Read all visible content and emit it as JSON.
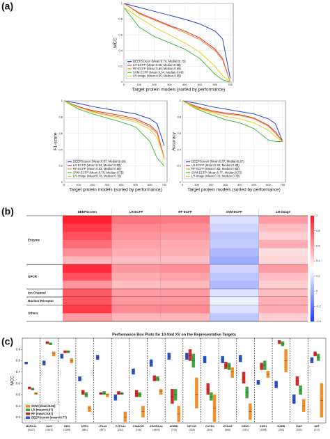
{
  "panel_labels": [
    "(a)",
    "(b)",
    "(c)"
  ],
  "chart_data": [
    {
      "type": "line",
      "xlabel": "Target protein models (sorted by performance)",
      "ylabel": "MCC",
      "x": [
        0,
        100,
        200,
        300,
        400,
        500,
        600,
        650,
        700
      ],
      "xlim": [
        0,
        720
      ],
      "xticks": [
        0,
        100,
        200,
        300,
        400,
        500,
        600,
        700
      ],
      "ylim": [
        0,
        1
      ],
      "yticks": [
        0,
        0.2,
        0.4,
        0.6,
        0.8,
        1
      ],
      "grid": true,
      "legend": "lower-left",
      "series": [
        {
          "name": "DEEPScreen (Mean:0.74, Median:0.75)",
          "color": "#2b3fd0",
          "values": [
            1,
            0.95,
            0.9,
            0.85,
            0.8,
            0.74,
            0.65,
            0.55,
            0.05
          ]
        },
        {
          "name": "LR-ECFP (Mean:0.68, Median:0.69)",
          "color": "#e0302a",
          "values": [
            1,
            0.88,
            0.8,
            0.72,
            0.65,
            0.56,
            0.42,
            0.3,
            0
          ]
        },
        {
          "name": "RF-ECFP (Mean:0.68, Median:0.69)",
          "color": "#f08a30",
          "values": [
            1,
            0.87,
            0.79,
            0.71,
            0.63,
            0.54,
            0.4,
            0.28,
            0
          ]
        },
        {
          "name": "SVM-ECFP (Mean:0.54, Median:0.48)",
          "color": "#3cb83c",
          "values": [
            0.95,
            0.7,
            0.58,
            0.5,
            0.42,
            0.3,
            0.1,
            0.03,
            0
          ]
        },
        {
          "name": "LR-image (Mean:0.55, Median:0.55)",
          "color": "#e8d020",
          "values": [
            0.95,
            0.82,
            0.7,
            0.6,
            0.5,
            0.38,
            0.2,
            0.08,
            0
          ]
        }
      ]
    },
    {
      "type": "line",
      "xlabel": "Target protein models (sorted by performance)",
      "ylabel": "F1-score",
      "x": [
        0,
        100,
        200,
        300,
        400,
        500,
        600,
        650,
        700
      ],
      "xlim": [
        0,
        720
      ],
      "xticks": [
        0,
        100,
        200,
        300,
        400,
        500,
        600,
        700
      ],
      "ylim": [
        0,
        1
      ],
      "yticks": [
        0,
        0.2,
        0.4,
        0.6,
        0.8,
        1
      ],
      "grid": true,
      "legend": "lower-left",
      "series": [
        {
          "name": "DEEPScreen (Mean:0.87, Median:0.88)",
          "color": "#2b3fd0",
          "values": [
            1,
            0.97,
            0.93,
            0.9,
            0.87,
            0.84,
            0.78,
            0.72,
            0.45
          ]
        },
        {
          "name": "LR-ECFP (Mean:0.84, Median:0.82)",
          "color": "#e0302a",
          "values": [
            1,
            0.93,
            0.88,
            0.85,
            0.82,
            0.78,
            0.7,
            0.62,
            0.3
          ]
        },
        {
          "name": "RF-ECFP (Mean:0.83, Median:0.80)",
          "color": "#f08a30",
          "values": [
            1,
            0.92,
            0.87,
            0.83,
            0.8,
            0.76,
            0.68,
            0.6,
            0.28
          ]
        },
        {
          "name": "SVM-ECFP (Mean:0.78, Median:0.75)",
          "color": "#3cb83c",
          "values": [
            1,
            0.9,
            0.84,
            0.79,
            0.74,
            0.68,
            0.5,
            0.3,
            0.2
          ]
        },
        {
          "name": "LR-image (Mean:0.78, Median:0.78)",
          "color": "#e8d020",
          "values": [
            1,
            0.92,
            0.86,
            0.82,
            0.78,
            0.74,
            0.65,
            0.55,
            0.3
          ]
        }
      ]
    },
    {
      "type": "line",
      "xlabel": "Target protein models (sorted by performance)",
      "ylabel": "Accuracy",
      "x": [
        0,
        100,
        200,
        300,
        400,
        500,
        600,
        650,
        700
      ],
      "xlim": [
        0,
        720
      ],
      "xticks": [
        0,
        100,
        200,
        300,
        400,
        500,
        600,
        700
      ],
      "ylim": [
        0,
        1
      ],
      "yticks": [
        0,
        0.2,
        0.4,
        0.6,
        0.8,
        1
      ],
      "grid": true,
      "legend": "lower-left",
      "series": [
        {
          "name": "DEEPScreen (Mean:0.87, Median:0.87)",
          "color": "#2b3fd0",
          "values": [
            1,
            0.97,
            0.93,
            0.9,
            0.87,
            0.84,
            0.78,
            0.72,
            0.5
          ]
        },
        {
          "name": "LR-ECFP (Mean:0.83, Median:0.83)",
          "color": "#e0302a",
          "values": [
            1,
            0.93,
            0.88,
            0.85,
            0.83,
            0.79,
            0.7,
            0.62,
            0.5
          ]
        },
        {
          "name": "RF-ECFP (Mean:0.83, Median:0.82)",
          "color": "#f08a30",
          "values": [
            1,
            0.92,
            0.87,
            0.84,
            0.82,
            0.78,
            0.69,
            0.6,
            0.5
          ]
        },
        {
          "name": "SVM-ECFP (Mean:0.77, Median:0.73)",
          "color": "#3cb83c",
          "values": [
            1,
            0.9,
            0.83,
            0.77,
            0.73,
            0.66,
            0.52,
            0.5,
            0.5
          ]
        },
        {
          "name": "LR-image (Mean:0.78, Median:0.78)",
          "color": "#e8d020",
          "values": [
            1,
            0.91,
            0.86,
            0.81,
            0.78,
            0.73,
            0.64,
            0.56,
            0.5
          ]
        }
      ]
    },
    {
      "type": "heatmap",
      "columns": [
        "DEEPScreen",
        "LR-ECFP",
        "RF-ECFP",
        "SVM-ECFP",
        "LR-image"
      ],
      "clim": [
        -0.4,
        1
      ],
      "cticks": [
        1,
        0.8,
        0.6,
        0.4,
        0.2,
        0,
        -0.2,
        -0.4
      ],
      "groups": [
        {
          "name": "Enzyme",
          "rows": [
            [
              0.98,
              0.72,
              0.7,
              0.2,
              0.6
            ],
            [
              0.9,
              0.66,
              0.64,
              0.15,
              0.5
            ],
            [
              0.82,
              0.62,
              0.6,
              0.1,
              0.45
            ],
            [
              0.74,
              0.58,
              0.56,
              0.12,
              0.55
            ],
            [
              0.64,
              0.55,
              0.54,
              0.05,
              0.4
            ],
            [
              0.52,
              0.5,
              0.5,
              0.0,
              0.42
            ]
          ]
        },
        {
          "name": "GPCR",
          "rows": [
            [
              0.95,
              0.62,
              0.64,
              0.15,
              0.6
            ],
            [
              0.82,
              0.56,
              0.58,
              0.1,
              0.5
            ],
            [
              0.62,
              0.5,
              0.52,
              0.05,
              0.45
            ]
          ]
        },
        {
          "name": "Ion Channel",
          "rows": [
            [
              0.8,
              0.6,
              0.6,
              0.2,
              0.5
            ]
          ]
        },
        {
          "name": "Nuclear Receptor",
          "rows": [
            [
              0.82,
              0.62,
              0.62,
              0.25,
              0.55
            ]
          ]
        },
        {
          "name": "Others",
          "rows": [
            [
              0.9,
              0.66,
              0.66,
              0.2,
              0.55
            ],
            [
              0.6,
              0.52,
              0.52,
              0.1,
              0.45
            ]
          ]
        }
      ]
    },
    {
      "type": "box",
      "title": "Performance Box Plots for 10-fold XV on the Representative Targets",
      "ylabel": "MCC",
      "categories": [
        "MAPK14",
        "JAK1",
        "REN",
        "DPP4",
        "LTA4H",
        "CYP3A4",
        "CAMK2D",
        "ADORA2A",
        "ADRB1",
        "NPY2R",
        "CXCR4",
        "KCNA5",
        "GRIK1",
        "ESR1",
        "RARB",
        "XIAP",
        "NET"
      ],
      "category_counts": [
        "(5427)",
        "(1613)",
        "(1255)",
        "(881)",
        "(467)",
        "(252)",
        "(116)",
        "(4449)",
        "(714)",
        "(328)",
        "(434)",
        "(484)",
        "(310)",
        "(1369)",
        "(263)",
        "(283)",
        "(217)"
      ],
      "ylim": [
        0.25,
        1
      ],
      "yticks": [
        0.3,
        0.4,
        0.5,
        0.6,
        0.7,
        0.8,
        0.9
      ],
      "legend": "lower-left",
      "series": [
        {
          "name": "SVM (mean=0.53)",
          "color": "#f0902a",
          "values": [
            [
              0.5,
              0.51,
              0.52
            ],
            [
              0.84,
              0.86,
              0.88
            ],
            [
              0.78,
              0.8,
              0.82
            ],
            [
              0.35,
              0.38,
              0.4
            ],
            [
              0.48,
              0.5,
              0.51
            ],
            [
              0.26,
              0.3,
              0.35
            ],
            [
              0.3,
              0.35,
              0.4
            ],
            [
              0.5,
              0.53,
              0.55
            ],
            [
              0.26,
              0.33,
              0.4
            ],
            [
              0.38,
              0.5,
              0.65
            ],
            [
              0.26,
              0.38,
              0.5
            ],
            [
              0.65,
              0.7,
              0.74
            ],
            [
              0.28,
              0.35,
              0.42
            ],
            [
              0.65,
              0.68,
              0.71
            ],
            [
              0.7,
              0.8,
              0.9
            ],
            [
              0.35,
              0.4,
              0.46
            ],
            [
              0.3,
              0.45,
              0.6
            ]
          ]
        },
        {
          "name": "LR (mean=0.67)",
          "color": "#3aa83a",
          "values": [
            [
              0.54,
              0.55,
              0.56
            ],
            [
              0.94,
              0.95,
              0.96
            ],
            [
              0.87,
              0.88,
              0.89
            ],
            [
              0.48,
              0.5,
              0.52
            ],
            [
              0.5,
              0.51,
              0.53
            ],
            [
              0.5,
              0.51,
              0.52
            ],
            [
              0.48,
              0.5,
              0.52
            ],
            [
              0.62,
              0.64,
              0.66
            ],
            [
              0.45,
              0.5,
              0.55
            ],
            [
              0.74,
              0.8,
              0.86
            ],
            [
              0.45,
              0.48,
              0.52
            ],
            [
              0.72,
              0.75,
              0.78
            ],
            [
              0.47,
              0.52,
              0.57
            ],
            [
              0.72,
              0.76,
              0.8
            ],
            [
              0.93,
              0.95,
              0.97
            ],
            [
              0.5,
              0.54,
              0.58
            ],
            [
              0.8,
              0.83,
              0.86
            ]
          ]
        },
        {
          "name": "RF (mean=0.67)",
          "color": "#d42a2a",
          "values": [
            [
              0.55,
              0.56,
              0.57
            ],
            [
              0.95,
              0.96,
              0.97
            ],
            [
              0.87,
              0.88,
              0.89
            ],
            [
              0.5,
              0.52,
              0.54
            ],
            [
              0.5,
              0.51,
              0.52
            ],
            [
              0.5,
              0.51,
              0.53
            ],
            [
              0.48,
              0.51,
              0.54
            ],
            [
              0.62,
              0.65,
              0.67
            ],
            [
              0.42,
              0.48,
              0.55
            ],
            [
              0.8,
              0.85,
              0.9
            ],
            [
              0.5,
              0.55,
              0.6
            ],
            [
              0.73,
              0.76,
              0.79
            ],
            [
              0.6,
              0.65,
              0.7
            ],
            [
              0.72,
              0.75,
              0.78
            ],
            [
              0.95,
              0.97,
              0.98
            ],
            [
              0.58,
              0.62,
              0.66
            ],
            [
              0.84,
              0.86,
              0.88
            ]
          ]
        },
        {
          "name": "DEEPScreen (mean=0.77)",
          "color": "#2a52c8",
          "values": [
            [
              0.77,
              0.78,
              0.79
            ],
            [
              0.76,
              0.78,
              0.8
            ],
            [
              0.82,
              0.84,
              0.86
            ],
            [
              0.62,
              0.64,
              0.66
            ],
            [
              0.81,
              0.83,
              0.85
            ],
            [
              0.45,
              0.48,
              0.5
            ],
            [
              0.68,
              0.71,
              0.73
            ],
            [
              0.75,
              0.78,
              0.81
            ],
            [
              0.81,
              0.84,
              0.87
            ],
            [
              0.81,
              0.84,
              0.87
            ],
            [
              0.78,
              0.81,
              0.84
            ],
            [
              0.78,
              0.81,
              0.84
            ],
            [
              0.79,
              0.82,
              0.85
            ],
            [
              0.59,
              0.61,
              0.63
            ],
            [
              0.56,
              0.58,
              0.62
            ],
            [
              0.42,
              0.45,
              0.5
            ],
            [
              0.78,
              0.81,
              0.83
            ]
          ]
        }
      ]
    }
  ]
}
